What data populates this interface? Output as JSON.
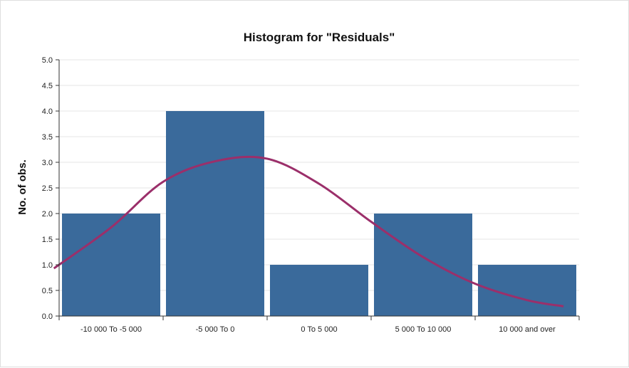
{
  "chart_data": {
    "type": "bar",
    "title": "Histogram for \"Residuals\"",
    "xlabel": "",
    "ylabel": "No. of obs.",
    "categories": [
      "-10 000 To -5 000",
      "-5 000 To 0",
      "0 To 5 000",
      "5 000 To 10 000",
      "10 000 and over"
    ],
    "values": [
      2,
      4,
      1,
      2,
      1
    ],
    "ylim": [
      0,
      5
    ],
    "yticks": [
      "0.0",
      "0.5",
      "1.0",
      "1.5",
      "2.0",
      "2.5",
      "3.0",
      "3.5",
      "4.0",
      "4.5",
      "5.0"
    ],
    "grid": true,
    "normal_curve": {
      "x": [
        -0.05,
        0.5,
        1.0,
        1.5,
        2.0,
        2.5,
        3.0,
        3.5,
        4.0,
        4.5,
        4.85
      ],
      "y": [
        0.93,
        1.73,
        2.62,
        3.02,
        3.07,
        2.58,
        1.84,
        1.15,
        0.63,
        0.31,
        0.19
      ]
    },
    "colors": {
      "bar": "#3a6a9b",
      "curve": "#9b2f6a"
    }
  }
}
